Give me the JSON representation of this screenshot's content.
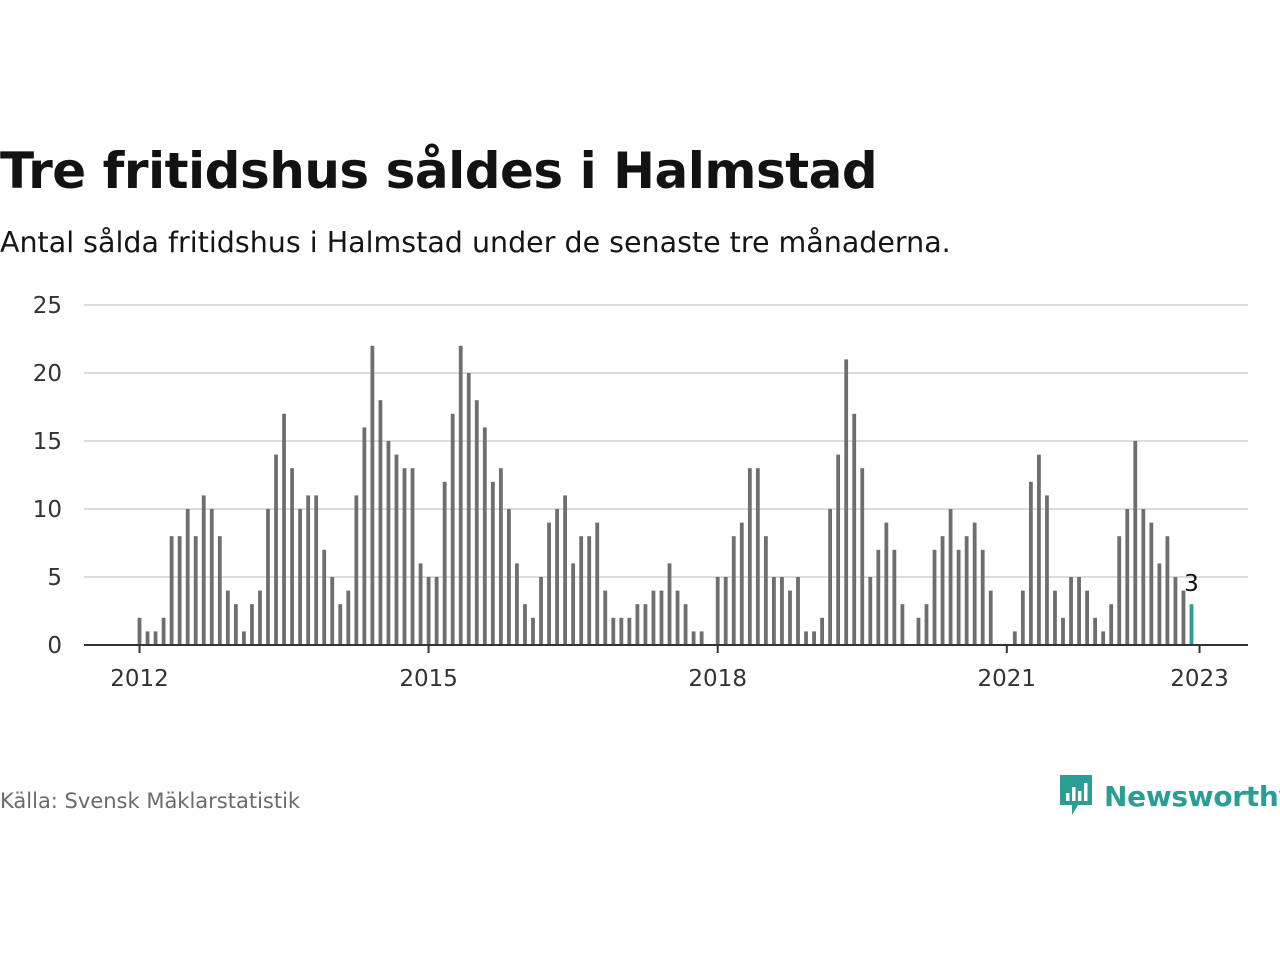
{
  "title": "Tre fritidshus såldes i Halmstad",
  "subtitle": "Antal sålda fritidshus i Halmstad under de senaste tre månaderna.",
  "source": "Källa: Svensk Mäklarstatistik",
  "brand": {
    "name": "Newsworthy",
    "icon": "newsworthy-logo-icon",
    "color": "#2a9d94"
  },
  "chart_data": {
    "type": "bar",
    "x_start": "2012-01",
    "x_end": "2023-01",
    "ylim": [
      0,
      25
    ],
    "y_ticks": [
      0,
      5,
      10,
      15,
      20,
      25
    ],
    "x_ticks": [
      {
        "label": "2012",
        "month": "2012-01"
      },
      {
        "label": "2015",
        "month": "2015-01"
      },
      {
        "label": "2018",
        "month": "2018-01"
      },
      {
        "label": "2021",
        "month": "2021-01"
      },
      {
        "label": "2023",
        "month": "2023-01"
      }
    ],
    "grid": true,
    "bar_color": "#6e6e6e",
    "highlight_color": "#2a9d94",
    "highlight_label": "3",
    "values": [
      2,
      1,
      1,
      2,
      8,
      8,
      10,
      8,
      11,
      10,
      8,
      4,
      3,
      1,
      3,
      4,
      10,
      14,
      17,
      13,
      10,
      11,
      11,
      7,
      5,
      3,
      4,
      11,
      16,
      22,
      18,
      15,
      14,
      13,
      13,
      6,
      5,
      5,
      12,
      17,
      22,
      20,
      18,
      16,
      12,
      13,
      10,
      6,
      3,
      2,
      5,
      9,
      10,
      11,
      6,
      8,
      8,
      9,
      4,
      2,
      2,
      2,
      3,
      3,
      4,
      4,
      6,
      4,
      3,
      1,
      1,
      0,
      5,
      5,
      8,
      9,
      13,
      13,
      8,
      5,
      5,
      4,
      5,
      1,
      1,
      2,
      10,
      14,
      21,
      17,
      13,
      5,
      7,
      9,
      7,
      3,
      0,
      2,
      3,
      7,
      8,
      10,
      7,
      8,
      9,
      7,
      4,
      0,
      0,
      1,
      4,
      12,
      14,
      11,
      4,
      2,
      5,
      5,
      4,
      2,
      1,
      3,
      8,
      10,
      15,
      10,
      9,
      6,
      8,
      5,
      4,
      3
    ]
  }
}
